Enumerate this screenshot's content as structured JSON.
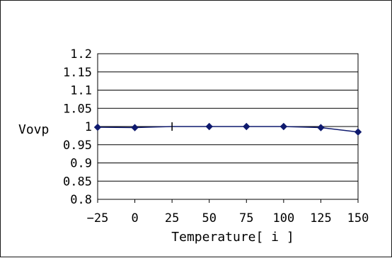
{
  "chart_data": {
    "type": "line",
    "title": "",
    "xlabel": "Temperature[ i ]",
    "ylabel": "Vovp",
    "categories": [
      "-25",
      "0",
      "25",
      "50",
      "75",
      "100",
      "125",
      "150"
    ],
    "series": [
      {
        "values": [
          0.998,
          0.997,
          1.0,
          1.0,
          1.0,
          1.0,
          0.997,
          0.985
        ],
        "markers": [
          "diamond",
          "diamond",
          "dash",
          "diamond",
          "diamond",
          "diamond",
          "diamond",
          "diamond"
        ]
      }
    ],
    "ylim": [
      0.8,
      1.2
    ],
    "yticks": [
      "0.8",
      "0.85",
      "0.9",
      "0.95",
      "1",
      "1.05",
      "1.1",
      "1.15",
      "1.2"
    ],
    "grid": true,
    "legend": "none",
    "colors": {
      "series": "#0f1a6e",
      "grid": "#000000",
      "axis": "#000000"
    }
  }
}
